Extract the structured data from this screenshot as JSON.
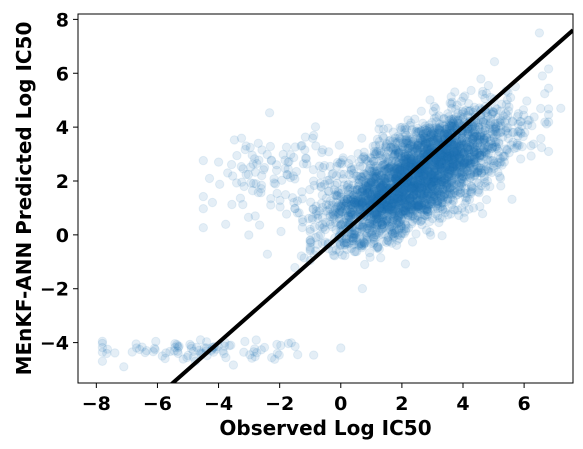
{
  "chart_data": {
    "type": "scatter",
    "xlabel": "Observed Log IC50",
    "ylabel": "MEnKF-ANN Predicted Log IC50",
    "xlim": [
      -8.6,
      7.6
    ],
    "ylim": [
      -5.5,
      8.2
    ],
    "xticks": [
      -8,
      -6,
      -4,
      -2,
      0,
      2,
      4,
      6
    ],
    "yticks": [
      -4,
      -2,
      0,
      2,
      4,
      6,
      8
    ],
    "xtick_labels": [
      "−8",
      "−6",
      "−4",
      "−2",
      "0",
      "2",
      "4",
      "6"
    ],
    "ytick_labels": [
      "−4",
      "−2",
      "0",
      "2",
      "4",
      "6",
      "8"
    ],
    "grid": false,
    "point_color": "#1f77b4",
    "point_alpha": 0.12,
    "reference_line": {
      "type": "identity",
      "slope": 1,
      "intercept": 0,
      "color": "#000000"
    },
    "clusters": [
      {
        "name": "main-cloud",
        "n": 2600,
        "x_mean": 2.8,
        "x_sd": 1.35,
        "slope": 0.45,
        "intercept": 1.25,
        "resid_sd": 0.85,
        "x_range": [
          -1.5,
          6.8
        ]
      },
      {
        "name": "low-band",
        "n": 500,
        "x_mean": 1.5,
        "x_sd": 1.1,
        "slope": 0.05,
        "intercept": 1.0,
        "resid_sd": 0.35,
        "x_range": [
          -2.5,
          4.5
        ]
      },
      {
        "name": "near-zero",
        "n": 160,
        "x_mean": 0.6,
        "x_sd": 0.9,
        "slope": 0.1,
        "intercept": -0.15,
        "resid_sd": 0.3,
        "x_range": [
          -1.0,
          3.0
        ]
      },
      {
        "name": "left-spread",
        "n": 120,
        "x_mean": -2.0,
        "x_sd": 1.1,
        "slope": 0.2,
        "intercept": 2.6,
        "resid_sd": 0.9,
        "x_range": [
          -4.5,
          0.0
        ]
      },
      {
        "name": "bottom-outliers",
        "n": 90,
        "x_mean": -4.8,
        "x_sd": 1.9,
        "slope": 0.0,
        "intercept": -4.25,
        "resid_sd": 0.18,
        "x_range": [
          -7.8,
          0.0
        ]
      }
    ],
    "extra_points": [
      [
        6.5,
        7.5
      ],
      [
        6.6,
        5.9
      ],
      [
        -4.2,
        1.2
      ],
      [
        -4.0,
        2.7
      ],
      [
        -7.1,
        -4.9
      ],
      [
        -3.1,
        3.3
      ],
      [
        -2.7,
        3.4
      ],
      [
        0.0,
        -4.2
      ],
      [
        -1.3,
        3.3
      ],
      [
        -2.8,
        0.7
      ],
      [
        -3.7,
        2.3
      ],
      [
        -2.1,
        2.6
      ],
      [
        7.2,
        4.7
      ],
      [
        6.8,
        3.1
      ]
    ]
  }
}
